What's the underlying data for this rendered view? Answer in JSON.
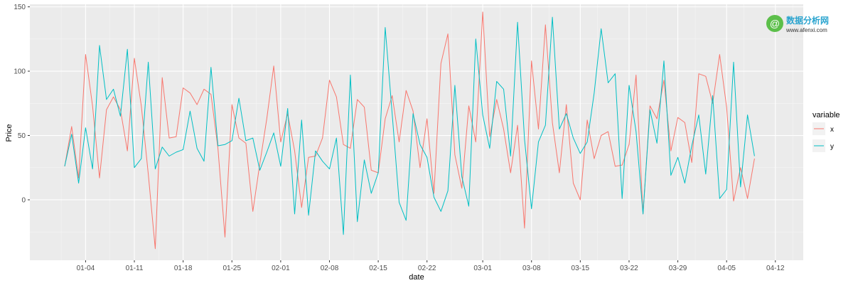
{
  "chart_data": {
    "type": "line",
    "xlabel": "date",
    "ylabel": "Price",
    "x_start": "2016-01-01",
    "x_end": "2016-04-10",
    "xlim": [
      "2015-12-27",
      "2016-04-16"
    ],
    "ylim": [
      -47,
      152
    ],
    "y_ticks": [
      0,
      50,
      100,
      150
    ],
    "y_tick_labels": [
      "0",
      "50",
      "100",
      "150"
    ],
    "x_ticks": [
      "2016-01-04",
      "2016-01-11",
      "2016-01-18",
      "2016-01-25",
      "2016-02-01",
      "2016-02-08",
      "2016-02-15",
      "2016-02-22",
      "2016-03-01",
      "2016-03-08",
      "2016-03-15",
      "2016-03-22",
      "2016-03-29",
      "2016-04-05",
      "2016-04-12"
    ],
    "x_tick_labels": [
      "01-04",
      "01-11",
      "01-18",
      "01-25",
      "02-01",
      "02-08",
      "02-15",
      "02-22",
      "03-01",
      "03-08",
      "03-15",
      "03-22",
      "03-29",
      "04-05",
      "04-12"
    ],
    "panel_background": "#ebebeb",
    "grid": true,
    "legend": {
      "title": "variable",
      "position": "right"
    },
    "series": [
      {
        "name": "x",
        "color": "#f8766d",
        "values": [
          26,
          57,
          17,
          113,
          73,
          17,
          70,
          80,
          70,
          38,
          110,
          73,
          20,
          -38,
          95,
          48,
          49,
          87,
          83,
          74,
          86,
          82,
          40,
          -29,
          74,
          48,
          44,
          -9,
          28,
          63,
          104,
          45,
          67,
          38,
          -6,
          33,
          34,
          48,
          93,
          80,
          43,
          40,
          78,
          72,
          23,
          21,
          63,
          81,
          45,
          85,
          69,
          25,
          63,
          5,
          106,
          129,
          35,
          9,
          73,
          45,
          146,
          49,
          78,
          55,
          21,
          58,
          -22,
          108,
          55,
          136,
          60,
          21,
          74,
          13,
          0,
          62,
          32,
          50,
          53,
          26,
          27,
          43,
          97,
          -11,
          73,
          63,
          93,
          38,
          64,
          60,
          29,
          98,
          96,
          75,
          113,
          72,
          -1,
          25,
          1,
          32
        ]
      },
      {
        "name": "y",
        "color": "#00bfc4",
        "values": [
          26,
          51,
          13,
          56,
          24,
          120,
          78,
          86,
          65,
          117,
          25,
          32,
          107,
          24,
          41,
          34,
          37,
          39,
          69,
          40,
          30,
          103,
          42,
          43,
          46,
          79,
          46,
          48,
          23,
          37,
          52,
          26,
          71,
          -11,
          62,
          -12,
          38,
          30,
          24,
          48,
          -27,
          97,
          -17,
          31,
          5,
          21,
          134,
          67,
          -2,
          -16,
          67,
          43,
          33,
          2,
          -9,
          7,
          89,
          18,
          -5,
          125,
          66,
          40,
          92,
          86,
          34,
          138,
          47,
          -7,
          45,
          58,
          142,
          55,
          67,
          48,
          36,
          45,
          83,
          133,
          91,
          98,
          1,
          89,
          53,
          -11,
          70,
          44,
          108,
          19,
          33,
          13,
          42,
          66,
          20,
          81,
          1,
          8,
          107,
          10,
          66,
          34
        ]
      }
    ]
  },
  "watermark": {
    "brand_cn": "数据分析网",
    "brand_en": "www.afenxi.com",
    "color": "#2aa4cf"
  }
}
